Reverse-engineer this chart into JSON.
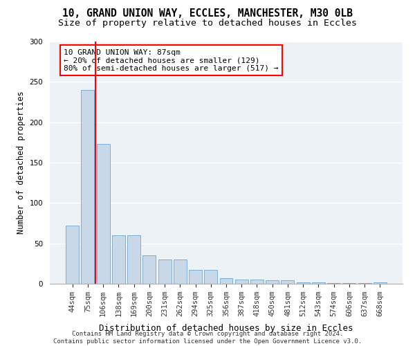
{
  "title1": "10, GRAND UNION WAY, ECCLES, MANCHESTER, M30 0LB",
  "title2": "Size of property relative to detached houses in Eccles",
  "xlabel": "Distribution of detached houses by size in Eccles",
  "ylabel": "Number of detached properties",
  "categories": [
    "44sqm",
    "75sqm",
    "106sqm",
    "138sqm",
    "169sqm",
    "200sqm",
    "231sqm",
    "262sqm",
    "294sqm",
    "325sqm",
    "356sqm",
    "387sqm",
    "418sqm",
    "450sqm",
    "481sqm",
    "512sqm",
    "543sqm",
    "574sqm",
    "606sqm",
    "637sqm",
    "668sqm"
  ],
  "values": [
    72,
    240,
    173,
    60,
    60,
    35,
    30,
    30,
    17,
    17,
    7,
    5,
    5,
    4,
    4,
    2,
    2,
    1,
    1,
    1,
    2
  ],
  "bar_color": "#c8d8e8",
  "bar_edge_color": "#7bafd4",
  "vline_x": 1.5,
  "vline_color": "red",
  "annotation_text": "10 GRAND UNION WAY: 87sqm\n← 20% of detached houses are smaller (129)\n80% of semi-detached houses are larger (517) →",
  "ylim": [
    0,
    300
  ],
  "yticks": [
    0,
    50,
    100,
    150,
    200,
    250,
    300
  ],
  "background_color": "#edf2f7",
  "grid_color": "#ffffff",
  "footer": "Contains HM Land Registry data © Crown copyright and database right 2024.\nContains public sector information licensed under the Open Government Licence v3.0.",
  "title1_fontsize": 10.5,
  "title2_fontsize": 9.5,
  "xlabel_fontsize": 9,
  "ylabel_fontsize": 8.5,
  "tick_fontsize": 7.5,
  "annotation_fontsize": 8,
  "footer_fontsize": 6.5
}
